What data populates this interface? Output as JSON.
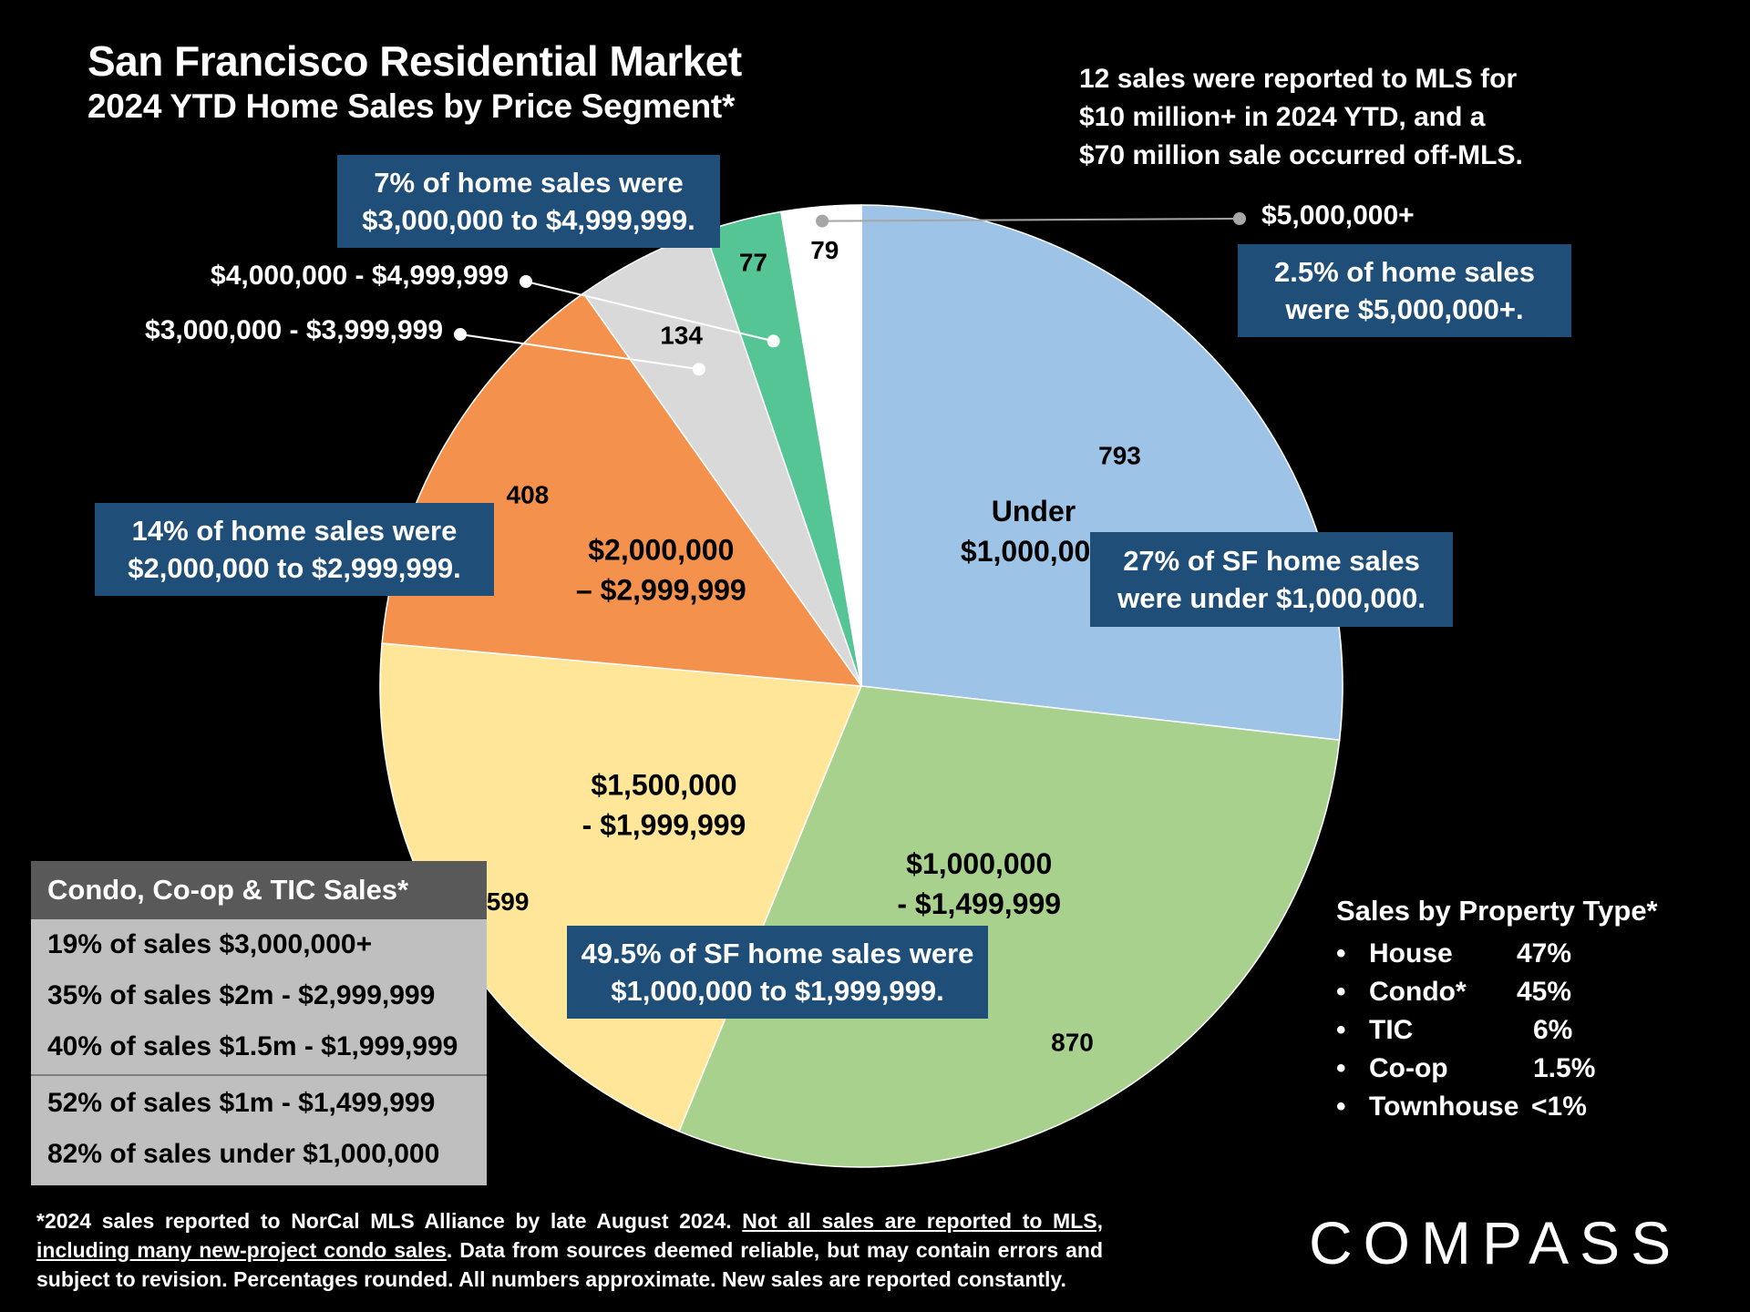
{
  "title": "San Francisco Residential Market",
  "subtitle": "2024 YTD Home Sales by Price Segment*",
  "mls_note": [
    "12 sales were reported to MLS for",
    "$10 million+ in 2024 YTD, and a",
    "$70 million sale occurred off-MLS."
  ],
  "chart_data": {
    "type": "pie",
    "title": "2024 YTD Home Sales by Price Segment*",
    "slices": [
      {
        "label": "Under $1,000,000",
        "label_lines": [
          "Under",
          "$1,000,000"
        ],
        "value": 793,
        "color": "#9dc3e6"
      },
      {
        "label": "$1,000,000 - $1,499,999",
        "label_lines": [
          "$1,000,000",
          "- $1,499,999"
        ],
        "value": 870,
        "color": "#a9d18e"
      },
      {
        "label": "$1,500,000 - $1,999,999",
        "label_lines": [
          "$1,500,000",
          "- $1,999,999"
        ],
        "value": 599,
        "color": "#ffe699"
      },
      {
        "label": "$2,000,000 – $2,999,999",
        "label_lines": [
          "$2,000,000",
          "– $2,999,999"
        ],
        "value": 408,
        "color": "#f4914d"
      },
      {
        "label": "$3,000,000 - $3,999,999",
        "label_lines": [],
        "value": 134,
        "color": "#d9d9d9"
      },
      {
        "label": "$4,000,000 - $4,999,999",
        "label_lines": [],
        "value": 77,
        "color": "#56c595"
      },
      {
        "label": "$5,000,000+",
        "label_lines": [],
        "value": 79,
        "color": "#ffffff"
      }
    ]
  },
  "external_labels": {
    "l3m": "$3,000,000 - $3,999,999",
    "l4m": "$4,000,000 - $4,999,999",
    "l5m": "$5,000,000+"
  },
  "callouts": {
    "c3to5": [
      "7% of home sales were",
      "$3,000,000 to $4,999,999."
    ],
    "c5plus": [
      "2.5% of home sales",
      "were $5,000,000+."
    ],
    "c2to3": [
      "14% of home sales were",
      "$2,000,000 to $2,999,999."
    ],
    "cunder1": [
      "27% of SF home sales",
      "were under $1,000,000."
    ],
    "c1to2": [
      "49.5% of SF home sales were",
      "$1,000,000 to $1,999,999."
    ]
  },
  "condo": {
    "title": "Condo, Co-op & TIC Sales*",
    "rows_top": [
      "19% of sales $3,000,000+",
      "35% of sales $2m - $2,999,999",
      "40% of sales $1.5m - $1,999,999"
    ],
    "rows_bottom": [
      "52% of sales $1m - $1,499,999",
      "82% of sales under $1,000,000"
    ]
  },
  "property_type": {
    "title": "Sales by Property Type*",
    "rows": [
      {
        "name": "House",
        "pct": "47%"
      },
      {
        "name": "Condo*",
        "pct": "45%"
      },
      {
        "name": "TIC",
        "pct": "6%"
      },
      {
        "name": "Co-op",
        "pct": "1.5%"
      },
      {
        "name": "Townhouse",
        "pct": "<1%"
      }
    ]
  },
  "footnote": {
    "part1": "*2024 sales reported to NorCal MLS Alliance by late August 2024. ",
    "part2": "Not all sales are reported to MLS, including many new-project condo sales",
    "part3": ". Data from sources deemed reliable, but may contain errors and subject to revision. Percentages rounded. All numbers approximate. New sales are reported constantly."
  },
  "logo": "COMPASS"
}
